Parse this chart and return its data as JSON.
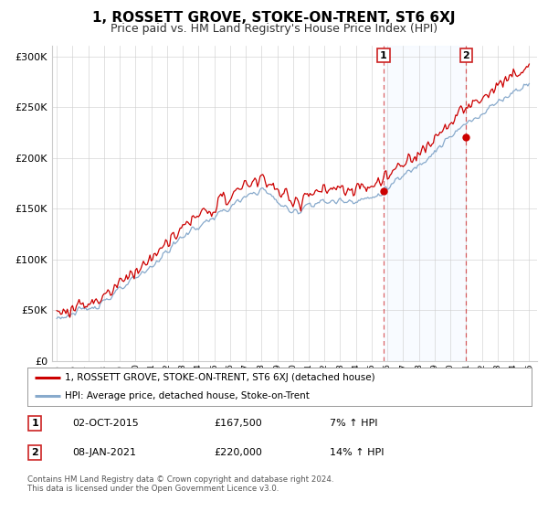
{
  "title": "1, ROSSETT GROVE, STOKE-ON-TRENT, ST6 6XJ",
  "subtitle": "Price paid vs. HM Land Registry's House Price Index (HPI)",
  "title_fontsize": 11,
  "subtitle_fontsize": 9,
  "background_color": "#ffffff",
  "plot_bg_color": "#ffffff",
  "grid_color": "#cccccc",
  "ylim": [
    0,
    310000
  ],
  "yticks": [
    0,
    50000,
    100000,
    150000,
    200000,
    250000,
    300000
  ],
  "ytick_labels": [
    "£0",
    "£50K",
    "£100K",
    "£150K",
    "£200K",
    "£250K",
    "£300K"
  ],
  "sale1_year": 2015.75,
  "sale1_price": 167500,
  "sale2_year": 2021.0,
  "sale2_price": 220000,
  "legend_house": "1, ROSSETT GROVE, STOKE-ON-TRENT, ST6 6XJ (detached house)",
  "legend_hpi": "HPI: Average price, detached house, Stoke-on-Trent",
  "footer": "Contains HM Land Registry data © Crown copyright and database right 2024.\nThis data is licensed under the Open Government Licence v3.0.",
  "house_color": "#cc0000",
  "hpi_color": "#88aacc",
  "vline_color": "#cc0000",
  "shade_color": "#ddeeff",
  "xlim_left": 1994.7,
  "xlim_right": 2025.5
}
